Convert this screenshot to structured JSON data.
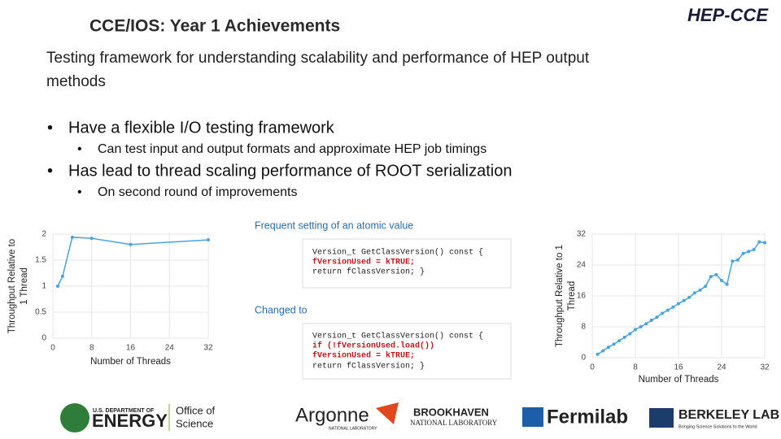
{
  "header": {
    "title": "CCE/IOS: Year 1 Achievements",
    "brand": "HEP-CCE"
  },
  "intro": [
    "Testing framework for understanding scalability and performance of HEP output",
    "methods"
  ],
  "bullets": [
    {
      "text": "Have a flexible I/O testing framework",
      "sub": "Can test input and output formats and approximate HEP job timings"
    },
    {
      "text": "Has lead to thread scaling performance of ROOT serialization",
      "sub": "On second round of improvements"
    }
  ],
  "code": {
    "caption1": "Frequent setting of an atomic value",
    "snippet1": [
      "Version_t GetClassVersion() const {",
      "    fVersionUsed = kTRUE;",
      "    return fClassVersion; }"
    ],
    "caption2": "Changed to",
    "snippet2": [
      "Version_t GetClassVersion() const {",
      "    if (!fVersionUsed.load())",
      "      fVersionUsed = kTRUE;",
      "    return fClassVersion; }"
    ]
  },
  "chart_data": [
    {
      "type": "line",
      "ylabel": [
        "Throughput Relative to",
        "1 Thread"
      ],
      "xlabel": "Number of Threads",
      "x": [
        1,
        2,
        4,
        8,
        16,
        32
      ],
      "values": [
        1.0,
        1.19,
        1.94,
        1.92,
        1.8,
        1.89
      ],
      "xlim": [
        0,
        32
      ],
      "ylim": [
        0,
        2
      ],
      "xticks": [
        0,
        8,
        16,
        24,
        32
      ],
      "yticks": [
        0,
        0.5,
        1,
        1.5,
        2
      ],
      "grid": true,
      "color": "#4aa3df"
    },
    {
      "type": "line",
      "ylabel": [
        "Throughput Relative to 1",
        "Thread"
      ],
      "xlabel": "Number of Threads",
      "x": [
        1,
        2,
        3,
        4,
        5,
        6,
        7,
        8,
        9,
        10,
        11,
        12,
        13,
        14,
        15,
        16,
        17,
        18,
        19,
        20,
        21,
        22,
        23,
        24,
        25,
        26,
        27,
        28,
        29,
        30,
        31,
        32
      ],
      "values": [
        0.9,
        1.8,
        2.7,
        3.5,
        4.4,
        5.3,
        6.2,
        7.3,
        8,
        8.8,
        9.7,
        10.5,
        11.5,
        12.3,
        13.1,
        14,
        14.8,
        15.6,
        16.8,
        17.5,
        18.5,
        21,
        21.5,
        20,
        19,
        25,
        25.3,
        27,
        27.5,
        28,
        30,
        29.8
      ],
      "xlim": [
        0,
        32
      ],
      "ylim": [
        0,
        32
      ],
      "xticks": [
        0,
        8,
        16,
        24,
        32
      ],
      "yticks": [
        0,
        8,
        16,
        24,
        32
      ],
      "grid": true,
      "color": "#4aa3df"
    }
  ],
  "logos": [
    "U.S. DEPARTMENT OF",
    "ENERGY",
    "Office of",
    "Science",
    "Argonne",
    "NATIONAL LABORATORY",
    "BROOKHAVEN",
    "NATIONAL LABORATORY",
    "Fermilab",
    "BERKELEY LAB",
    "Bringing Science Solutions to the World"
  ]
}
